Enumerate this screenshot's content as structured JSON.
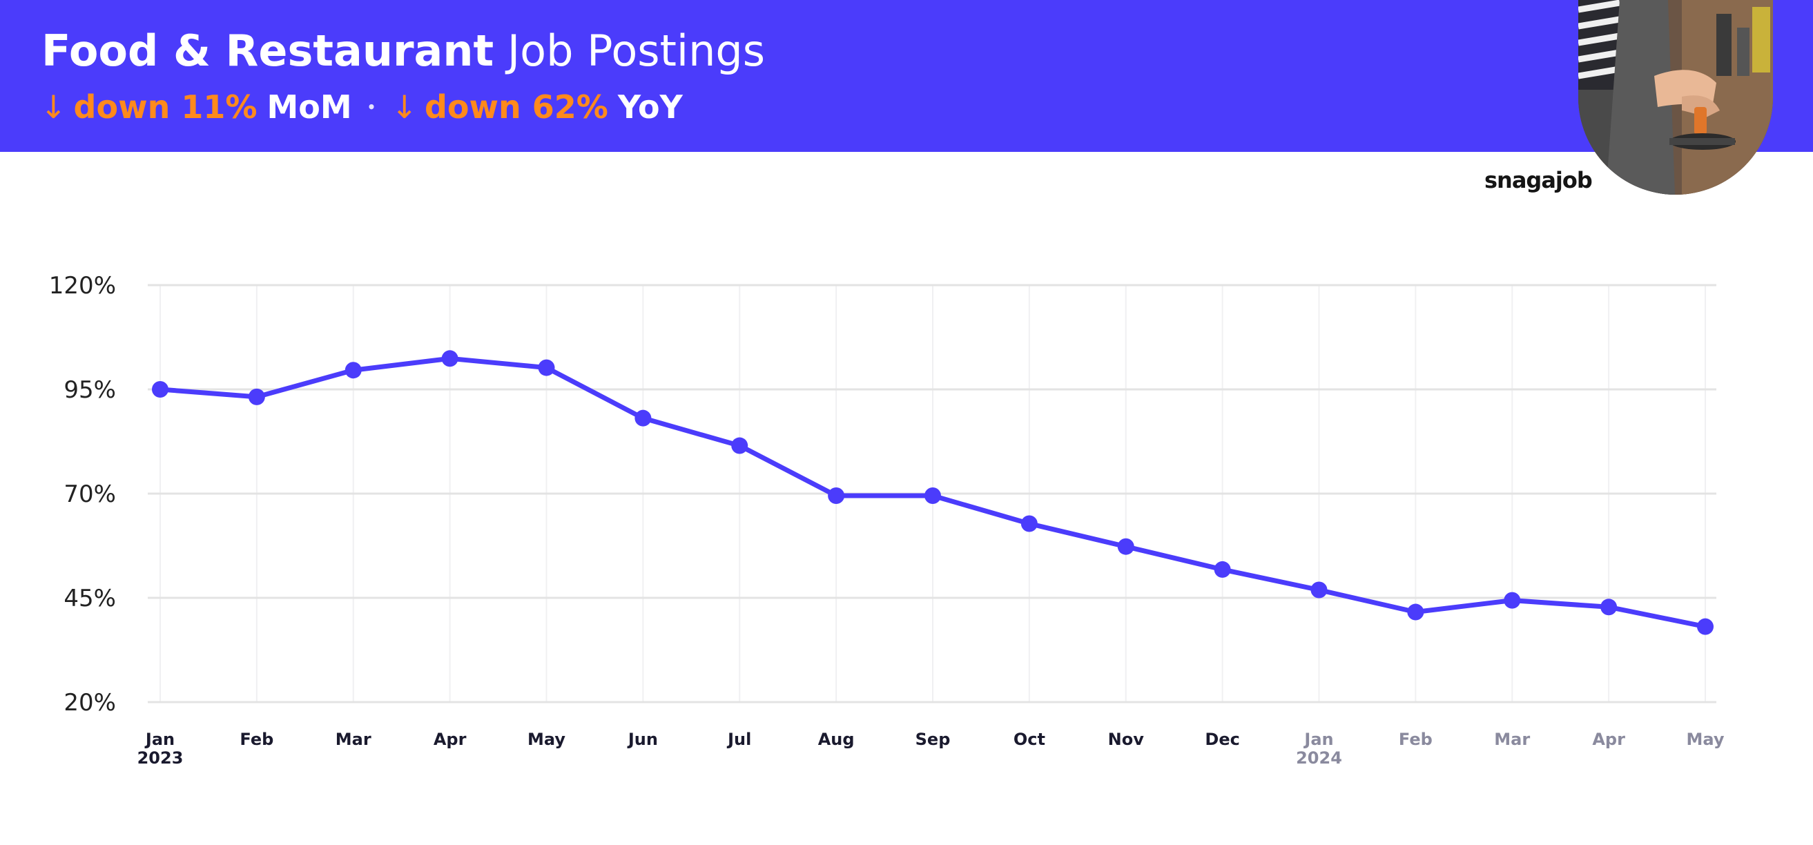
{
  "header": {
    "title_bold": "Food & Restaurant",
    "title_light": "Job Postings",
    "mom": {
      "arrow": "↓",
      "value": "down 11%",
      "unit": "MoM"
    },
    "separator": "•",
    "yoy": {
      "arrow": "↓",
      "value": "down 62%",
      "unit": "YoY"
    }
  },
  "brand": "snagajob",
  "colors": {
    "accent": "#4b3cfb",
    "highlight": "#ff8a1c",
    "line": "#4b3cfb",
    "grid": "#e3e3e3",
    "faded_label": "#8a8a9e"
  },
  "chart_data": {
    "type": "line",
    "title": "Food & Restaurant Job Postings",
    "xlabel": "",
    "ylabel": "",
    "ylim": [
      20,
      120
    ],
    "y_ticks": [
      "120%",
      "95%",
      "70%",
      "45%",
      "20%"
    ],
    "y_tick_values": [
      120,
      95,
      70,
      45,
      20
    ],
    "categories": [
      "Jan",
      "Feb",
      "Mar",
      "Apr",
      "May",
      "Jun",
      "Jul",
      "Aug",
      "Sep",
      "Oct",
      "Nov",
      "Dec",
      "Jan",
      "Feb",
      "Mar",
      "Apr",
      "May"
    ],
    "years": [
      {
        "index": 0,
        "label": "2023"
      },
      {
        "index": 12,
        "label": "2024"
      }
    ],
    "faded_from_index": 12,
    "grid": true,
    "legend": "none",
    "series": [
      {
        "values": [
          95,
          93.2,
          99.6,
          102.4,
          100.2,
          88.1,
          81.5,
          69.5,
          69.5,
          62.8,
          57.3,
          51.8,
          46.9,
          41.6,
          44.4,
          42.8,
          38.1
        ]
      }
    ]
  }
}
